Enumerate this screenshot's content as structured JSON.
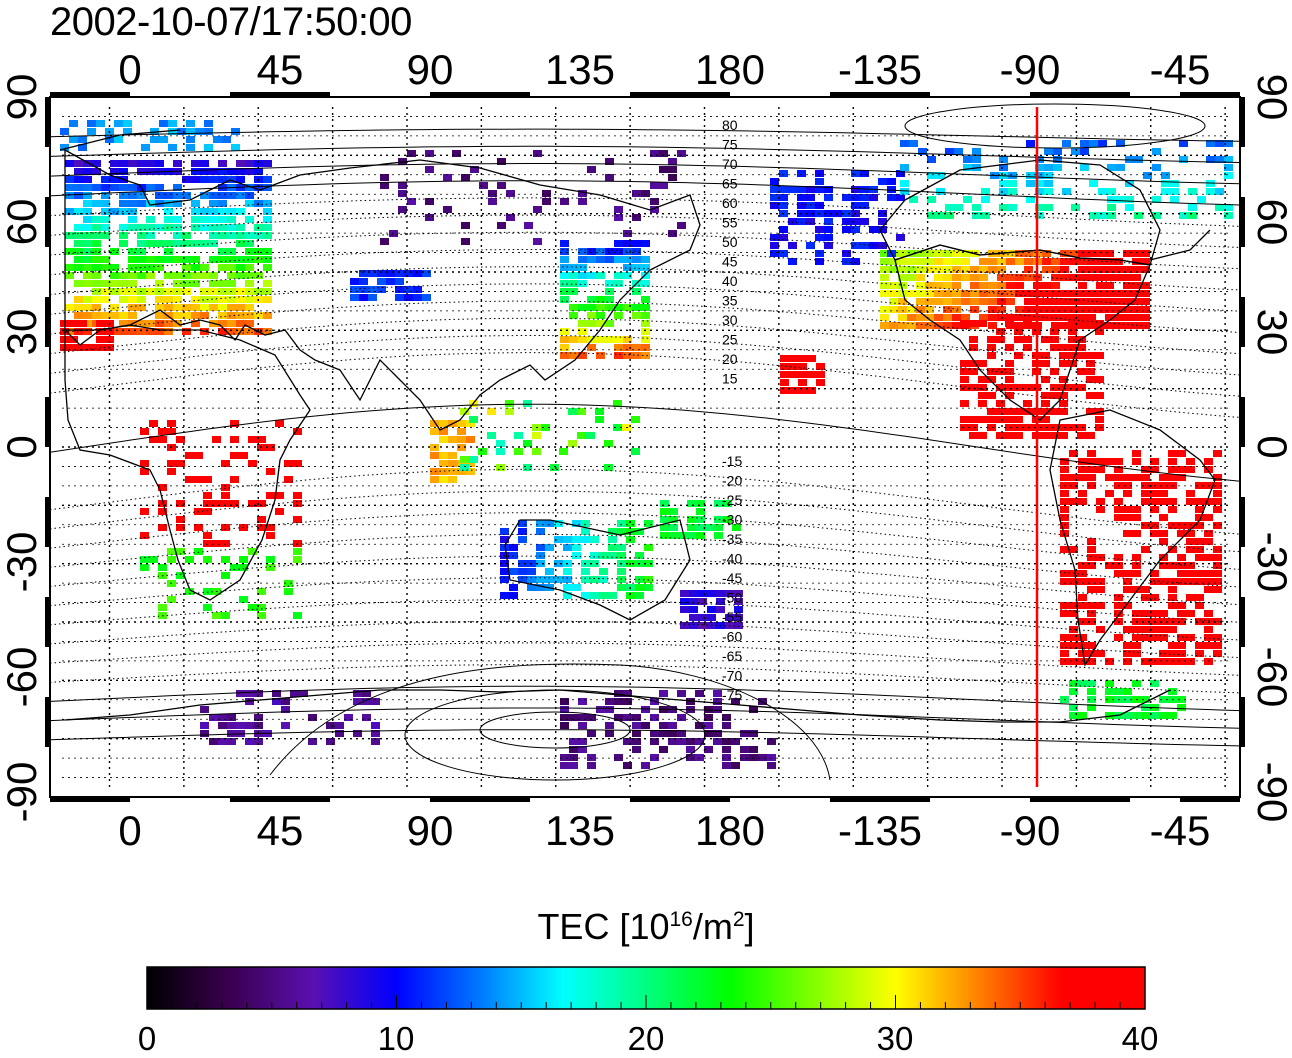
{
  "title": "2002-10-07/17:50:00",
  "map": {
    "projection": "cylindrical-equidistant",
    "lon_range": [
      -27,
      213
    ],
    "lat_range": [
      -90,
      90
    ],
    "top_lon_labels": [
      "0",
      "45",
      "90",
      "135",
      "180",
      "-135",
      "-90",
      "-45"
    ],
    "bottom_lon_labels": [
      "0",
      "45",
      "90",
      "135",
      "180",
      "-135",
      "-90",
      "-45"
    ],
    "left_lat_labels": [
      "90",
      "60",
      "30",
      "0",
      "-30",
      "-60",
      "-90"
    ],
    "right_lat_labels": [
      "90",
      "60",
      "30",
      "0",
      "-30",
      "-60",
      "-90"
    ],
    "north_contour_labels": [
      "80",
      "75",
      "70",
      "65",
      "60",
      "55",
      "50",
      "45",
      "40",
      "35",
      "30",
      "25",
      "20",
      "15"
    ],
    "south_contour_labels": [
      "-15",
      "-20",
      "-25",
      "-30",
      "-35",
      "-40",
      "-45",
      "-50",
      "-55",
      "-60",
      "-65",
      "-70",
      "-75"
    ],
    "marker_meridian_lon": -88.5,
    "marker_color": "#ff0000",
    "grid": "dotted 15 degrees"
  },
  "colorbar": {
    "title_prefix": "TEC  [10",
    "title_exp1": "16",
    "title_mid": "/m",
    "title_exp2": "2",
    "title_suffix": "]",
    "min": 0,
    "max": 40,
    "tick_labels": [
      "0",
      "10",
      "20",
      "30",
      "40"
    ],
    "colormap": [
      "#000000",
      "#3a0050",
      "#5a10b0",
      "#0000ff",
      "#0078ff",
      "#00ffff",
      "#00ff7f",
      "#00ff00",
      "#80ff00",
      "#ffff00",
      "#ff8000",
      "#ff0000",
      "#ff0000"
    ]
  }
}
